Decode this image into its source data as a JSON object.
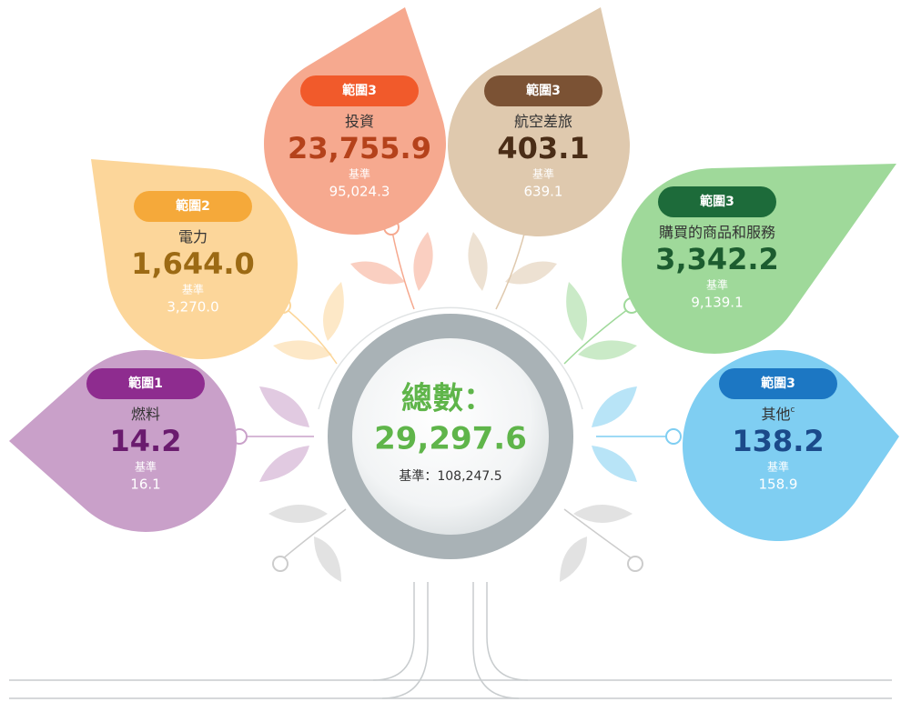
{
  "center": {
    "title": "總數：",
    "value": "29,297.6",
    "baseline": "基準：108,247.5"
  },
  "scopes": [
    {
      "scope": "範圍1",
      "name": "燃料",
      "value": "14.2",
      "baseline_label": "基準",
      "baseline": "16.1"
    },
    {
      "scope": "範圍2",
      "name": "電力",
      "value": "1,644.0",
      "baseline_label": "基準",
      "baseline": "3,270.0"
    },
    {
      "scope": "範圍3",
      "name": "投資",
      "value": "23,755.9",
      "baseline_label": "基準",
      "baseline": "95,024.3"
    },
    {
      "scope": "範圍3",
      "name": "航空差旅",
      "value": "403.1",
      "baseline_label": "基準",
      "baseline": "639.1"
    },
    {
      "scope": "範圍3",
      "name": "購買的商品和服務",
      "value": "3,342.2",
      "baseline_label": "基準",
      "baseline": "9,139.1"
    },
    {
      "scope": "範圍3",
      "name": "其他",
      "note": "c",
      "value": "138.2",
      "baseline_label": "基準",
      "baseline": "158.9"
    }
  ]
}
